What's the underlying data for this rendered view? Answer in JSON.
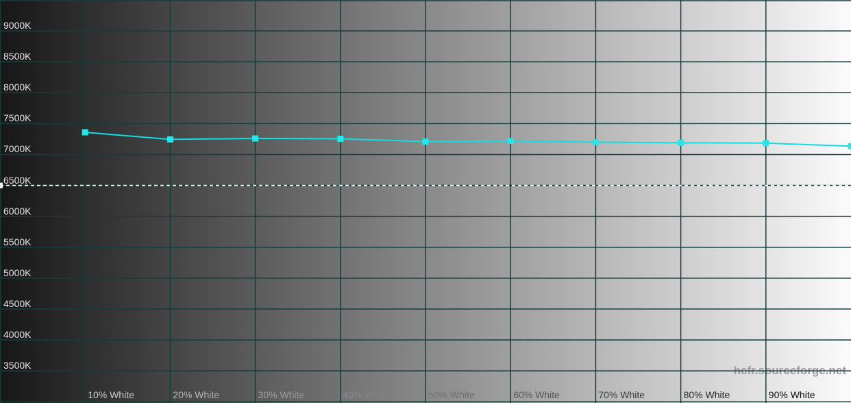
{
  "watermark": "hcfr.sourceforge.net",
  "chart_data": {
    "type": "line",
    "x": [
      10,
      20,
      30,
      40,
      50,
      60,
      70,
      80,
      90,
      100
    ],
    "series": [
      {
        "name": "measured-color-temperature",
        "values": [
          7360,
          7245,
          7260,
          7255,
          7210,
          7220,
          7200,
          7190,
          7185,
          7135
        ]
      }
    ],
    "x_tick_values": [
      10,
      20,
      30,
      40,
      50,
      60,
      70,
      80,
      90
    ],
    "x_tick_labels": [
      "10% White",
      "20% White",
      "30% White",
      "40% White",
      "50% White",
      "60% White",
      "70% White",
      "80% White",
      "90% White"
    ],
    "y_tick_values": [
      9000,
      8500,
      8000,
      7500,
      7000,
      6500,
      6000,
      5500,
      5000,
      4500,
      4000,
      3500
    ],
    "y_tick_labels": [
      "9000K",
      "8500K",
      "8000K",
      "7500K",
      "7000K",
      "6500K",
      "6000K",
      "5500K",
      "5000K",
      "4500K",
      "4000K",
      "3500K"
    ],
    "xlim": [
      0,
      100
    ],
    "ylim": [
      2980,
      9500
    ],
    "grid": true,
    "grid_step_x": 10,
    "grid_step_y": 500,
    "legend_position": "none",
    "reference_line": {
      "value": 6500,
      "style": "dashed",
      "color": "#f8f8f8",
      "edge_marker_color": "#eeeeee"
    },
    "colors": {
      "series_line": "#14dde2",
      "series_marker": "#26e6e9",
      "grid": "#143d3d",
      "background_left": "#171717",
      "background_right": "#fbfbfb",
      "tick_text_blend": "#ffffff",
      "watermark_text": "#9aa0a0"
    }
  }
}
